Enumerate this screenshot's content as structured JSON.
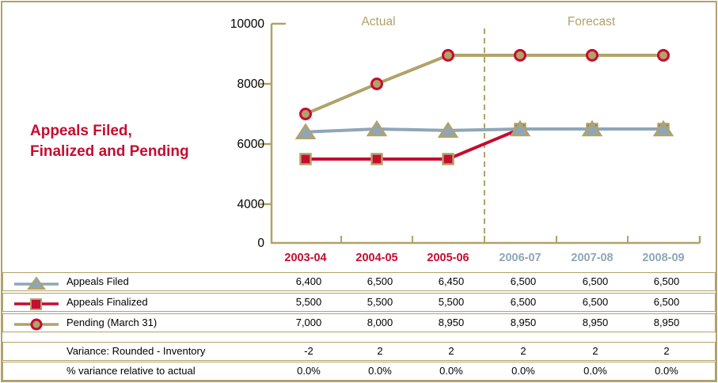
{
  "title": {
    "line1": "Appeals Filed,",
    "line2": "Finalized and Pending"
  },
  "colors": {
    "tan": "#b1a268",
    "red": "#c60c30",
    "bluegray": "#8ea6b8",
    "black": "#000000"
  },
  "chart_data": {
    "type": "line",
    "title": "Appeals Filed, Finalized and Pending",
    "categories": [
      "2003-04",
      "2004-05",
      "2005-06",
      "2006-07",
      "2007-08",
      "2008-09"
    ],
    "actual_label": "Actual",
    "forecast_label": "Forecast",
    "actual_count": 3,
    "y_ticks": [
      10000,
      8000,
      6000,
      4000,
      0
    ],
    "ylim": [
      0,
      10000
    ],
    "grid": false,
    "legend_position": "table-below",
    "series": [
      {
        "name": "Appeals Filed",
        "marker": "triangle",
        "line_color": "#8ea6b8",
        "marker_fill": "#8ea6b8",
        "marker_stroke": "#b1a268",
        "values": [
          6400,
          6500,
          6450,
          6500,
          6500,
          6500
        ]
      },
      {
        "name": "Appeals Finalized",
        "marker": "square",
        "line_color": "#c60c30",
        "marker_fill": "#c60c30",
        "marker_stroke": "#b1a268",
        "values": [
          5500,
          5500,
          5500,
          6500,
          6500,
          6500
        ]
      },
      {
        "name": "Pending (March 31)",
        "marker": "circle",
        "line_color": "#b1a268",
        "marker_fill": "#b1a268",
        "marker_stroke": "#c60c30",
        "values": [
          7000,
          8000,
          8950,
          8950,
          8950,
          8950
        ]
      }
    ]
  },
  "legend_table": {
    "rows": [
      {
        "label": "Appeals Filed",
        "values": [
          "6,400",
          "6,500",
          "6,450",
          "6,500",
          "6,500",
          "6,500"
        ]
      },
      {
        "label": "Appeals Finalized",
        "values": [
          "5,500",
          "5,500",
          "5,500",
          "6,500",
          "6,500",
          "6,500"
        ]
      },
      {
        "label": "Pending (March 31)",
        "values": [
          "7,000",
          "8,000",
          "8,950",
          "8,950",
          "8,950",
          "8,950"
        ]
      }
    ]
  },
  "variance_table": {
    "rows": [
      {
        "label": "Variance: Rounded - Inventory",
        "values": [
          "-2",
          "2",
          "2",
          "2",
          "2",
          "2"
        ]
      },
      {
        "label": "% variance relative to actual",
        "values": [
          "0.0%",
          "0.0%",
          "0.0%",
          "0.0%",
          "0.0%",
          "0.0%"
        ]
      }
    ]
  }
}
